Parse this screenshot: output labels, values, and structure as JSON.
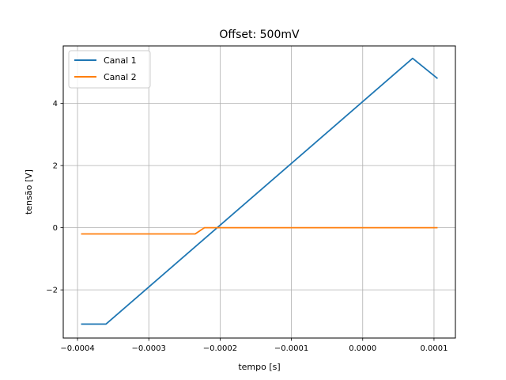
{
  "chart_data": {
    "type": "line",
    "title": "Offset: 500mV",
    "xlabel": "tempo [s]",
    "ylabel": "tensão [V]",
    "xlim": [
      -0.00042,
      0.00013
    ],
    "ylim": [
      -3.55,
      5.85
    ],
    "xticks": [
      -0.0004,
      -0.0003,
      -0.0002,
      -0.0001,
      0.0,
      0.0001
    ],
    "xtick_labels": [
      "−0.0004",
      "−0.0003",
      "−0.0002",
      "−0.0001",
      "0.0000",
      "0.0001"
    ],
    "yticks": [
      -2,
      0,
      2,
      4
    ],
    "ytick_labels": [
      "−2",
      "0",
      "2",
      "4"
    ],
    "grid": true,
    "legend_position": "top-left",
    "series": [
      {
        "name": "Canal 1",
        "color": "#1f77b4",
        "x": [
          -0.000395,
          -0.00036,
          7e-05,
          0.000105
        ],
        "y": [
          -3.1,
          -3.1,
          5.45,
          4.8
        ]
      },
      {
        "name": "Canal 2",
        "color": "#ff7f0e",
        "x": [
          -0.000395,
          -0.000235,
          -0.000222,
          0.000105
        ],
        "y": [
          -0.2,
          -0.2,
          0.0,
          0.0
        ]
      }
    ]
  }
}
